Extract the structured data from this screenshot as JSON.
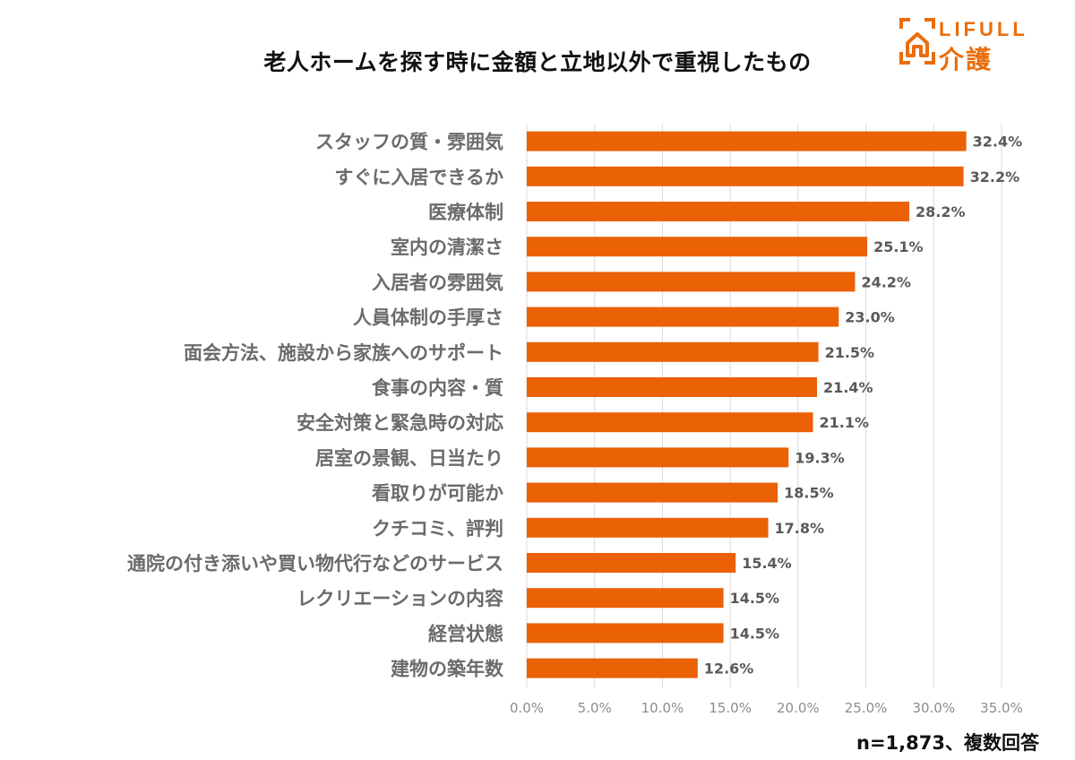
{
  "logo": {
    "brand": "LIFULL",
    "sub": "介護",
    "brand_color": "#ea6d0b"
  },
  "footnote": "n=1,873、複数回答",
  "chart_data": {
    "type": "bar",
    "orientation": "horizontal",
    "title": "老人ホームを探す時に金額と立地以外で重視したもの",
    "categories": [
      "スタッフの質・雰囲気",
      "すぐに入居できるか",
      "医療体制",
      "室内の清潔さ",
      "入居者の雰囲気",
      "人員体制の手厚さ",
      "面会方法、施設から家族へのサポート",
      "食事の内容・質",
      "安全対策と緊急時の対応",
      "居室の景観、日当たり",
      "看取りが可能か",
      "クチコミ、評判",
      "通院の付き添いや買い物代行などのサービス",
      "レクリエーションの内容",
      "経営状態",
      "建物の築年数"
    ],
    "values": [
      32.4,
      32.2,
      28.2,
      25.1,
      24.2,
      23.0,
      21.5,
      21.4,
      21.1,
      19.3,
      18.5,
      17.8,
      15.4,
      14.5,
      14.5,
      12.6
    ],
    "value_labels": [
      "32.4%",
      "32.2%",
      "28.2%",
      "25.1%",
      "24.2%",
      "23.0%",
      "21.5%",
      "21.4%",
      "21.1%",
      "19.3%",
      "18.5%",
      "17.8%",
      "15.4%",
      "14.5%",
      "14.5%",
      "12.6%"
    ],
    "xlim": [
      0,
      35
    ],
    "x_ticks": [
      0,
      5,
      10,
      15,
      20,
      25,
      30,
      35
    ],
    "x_tick_labels": [
      "0.0%",
      "5.0%",
      "10.0%",
      "15.0%",
      "20.0%",
      "25.0%",
      "30.0%",
      "35.0%"
    ],
    "bar_color": "#ea6106",
    "grid": "vertical",
    "xlabel": "",
    "ylabel": ""
  }
}
